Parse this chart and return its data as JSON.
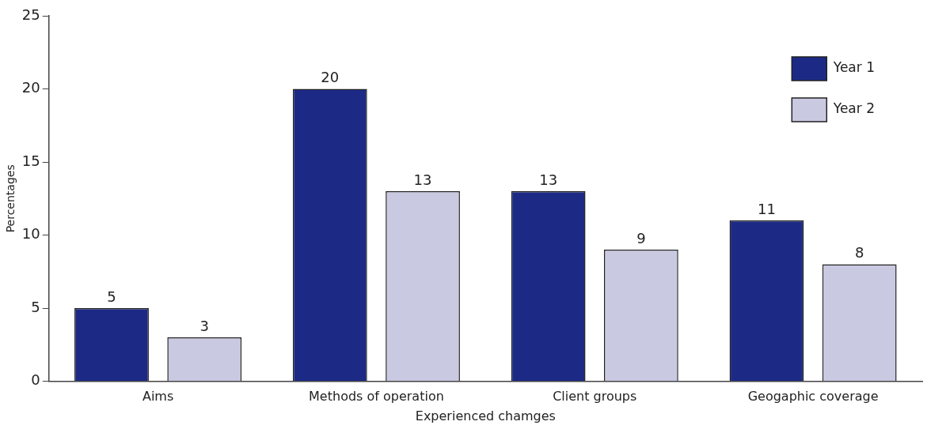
{
  "chart_data": {
    "type": "bar",
    "xlabel": "Experienced chamges",
    "ylabel": "Percentages",
    "categories": [
      "Aims",
      "Methods of operation",
      "Client groups",
      "Geogaphic coverage"
    ],
    "series": [
      {
        "name": "Year 1",
        "color": "#1c2a86",
        "values": [
          5,
          20,
          13,
          11
        ]
      },
      {
        "name": "Year 2",
        "color": "#c9c9e2",
        "values": [
          3,
          13,
          9,
          8
        ]
      }
    ],
    "ylim": [
      0,
      25
    ],
    "yticks": [
      0,
      5,
      10,
      15,
      20,
      25
    ],
    "grid": false,
    "legend": "top right",
    "data_labels": true
  }
}
